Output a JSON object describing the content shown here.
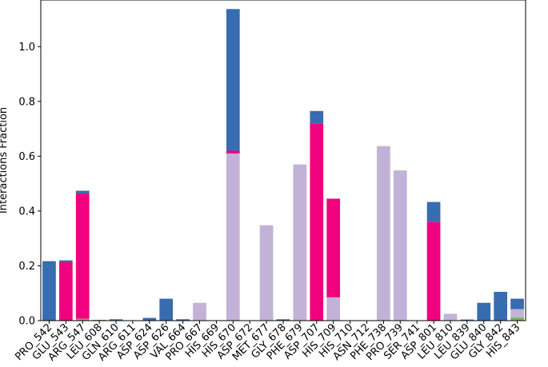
{
  "chart_data": {
    "type": "bar",
    "stacked": true,
    "title": "",
    "xlabel": "",
    "ylabel": "Interactions Fraction",
    "ylim": [
      0,
      1.17
    ],
    "yticks": [
      "0.0",
      "0.2",
      "0.4",
      "0.6",
      "0.8",
      "1.0"
    ],
    "grid": false,
    "categories": [
      "PRO_542",
      "GLU_543",
      "ARG_547",
      "LEU_608",
      "GLN_610",
      "ARG_611",
      "ASP_624",
      "ASP_626",
      "VAL_664",
      "PRO_667",
      "HIS_669",
      "HIS_670",
      "ASP_672",
      "MET_677",
      "GLY_678",
      "PHE_679",
      "ASP_707",
      "HIS_709",
      "HIS_710",
      "ASN_712",
      "PHE_738",
      "PRO_739",
      "SER_741",
      "ASP_801",
      "LEU_810",
      "LEU_839",
      "GLU_840",
      "GLY_842",
      "HIS_843"
    ],
    "series": [
      {
        "color": "#7cb461",
        "values": [
          0,
          0,
          0.007,
          0.003,
          0,
          0,
          0,
          0,
          0,
          0,
          0,
          0,
          0,
          0,
          0,
          0,
          0,
          0,
          0,
          0,
          0,
          0,
          0,
          0,
          0,
          0,
          0,
          0,
          0.012
        ]
      },
      {
        "color": "#c2b2d8",
        "values": [
          0,
          0,
          0,
          0,
          0,
          0,
          0,
          0,
          0,
          0.065,
          0,
          0.61,
          0,
          0.348,
          0,
          0.57,
          0,
          0.085,
          0,
          0,
          0.637,
          0.548,
          0,
          0,
          0.025,
          0,
          0,
          0,
          0.03
        ]
      },
      {
        "color": "#f0027f",
        "values": [
          0,
          0.213,
          0.457,
          0,
          0,
          0,
          0,
          0,
          0,
          0,
          0,
          0.01,
          0,
          0,
          0,
          0,
          0.72,
          0.36,
          0,
          0,
          0,
          0,
          0,
          0.36,
          0,
          0,
          0,
          0,
          0
        ]
      },
      {
        "color": "#386cb0",
        "values": [
          0.217,
          0.007,
          0.01,
          0,
          0.005,
          0,
          0.01,
          0.08,
          0.005,
          0,
          0,
          0.517,
          0,
          0,
          0.005,
          0,
          0.045,
          0,
          0,
          0,
          0,
          0,
          0,
          0.073,
          0,
          0.004,
          0.065,
          0.105,
          0.038
        ]
      }
    ]
  }
}
